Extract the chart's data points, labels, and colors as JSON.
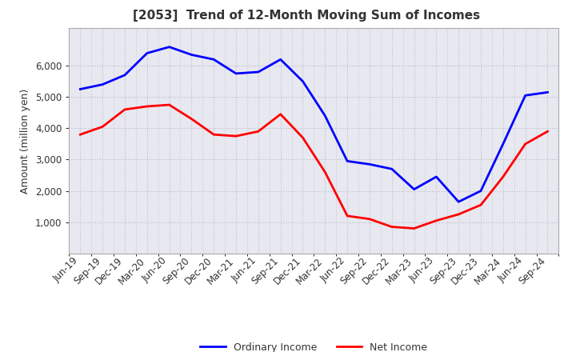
{
  "title": "[2053]  Trend of 12-Month Moving Sum of Incomes",
  "ylabel": "Amount (million yen)",
  "x_labels": [
    "Jun-19",
    "Sep-19",
    "Dec-19",
    "Mar-20",
    "Jun-20",
    "Sep-20",
    "Dec-20",
    "Mar-21",
    "Jun-21",
    "Sep-21",
    "Dec-21",
    "Mar-22",
    "Jun-22",
    "Sep-22",
    "Dec-22",
    "Mar-23",
    "Jun-23",
    "Sep-23",
    "Dec-23",
    "Mar-24",
    "Jun-24",
    "Sep-24"
  ],
  "ordinary_income": [
    5250,
    5400,
    5700,
    6400,
    6600,
    6350,
    6200,
    5750,
    5800,
    6200,
    5500,
    4400,
    2950,
    2850,
    2700,
    2050,
    2450,
    1650,
    2000,
    3500,
    5050,
    5150
  ],
  "net_income": [
    3800,
    4050,
    4600,
    4700,
    4750,
    4300,
    3800,
    3750,
    3900,
    4450,
    3700,
    2600,
    1200,
    1100,
    850,
    800,
    1050,
    1250,
    1550,
    2450,
    3500,
    3900
  ],
  "ordinary_color": "#0000FF",
  "net_color": "#FF0000",
  "background_color": "#FFFFFF",
  "plot_bg_color": "#E8E8F0",
  "grid_color": "#BBBBCC",
  "title_color": "#333333",
  "ylim_min": 0,
  "ylim_max": 7200,
  "yticks": [
    1000,
    2000,
    3000,
    4000,
    5000,
    6000
  ],
  "title_fontsize": 11,
  "axis_fontsize": 8.5,
  "ylabel_fontsize": 9,
  "legend_labels": [
    "Ordinary Income",
    "Net Income"
  ],
  "line_width": 2.0
}
